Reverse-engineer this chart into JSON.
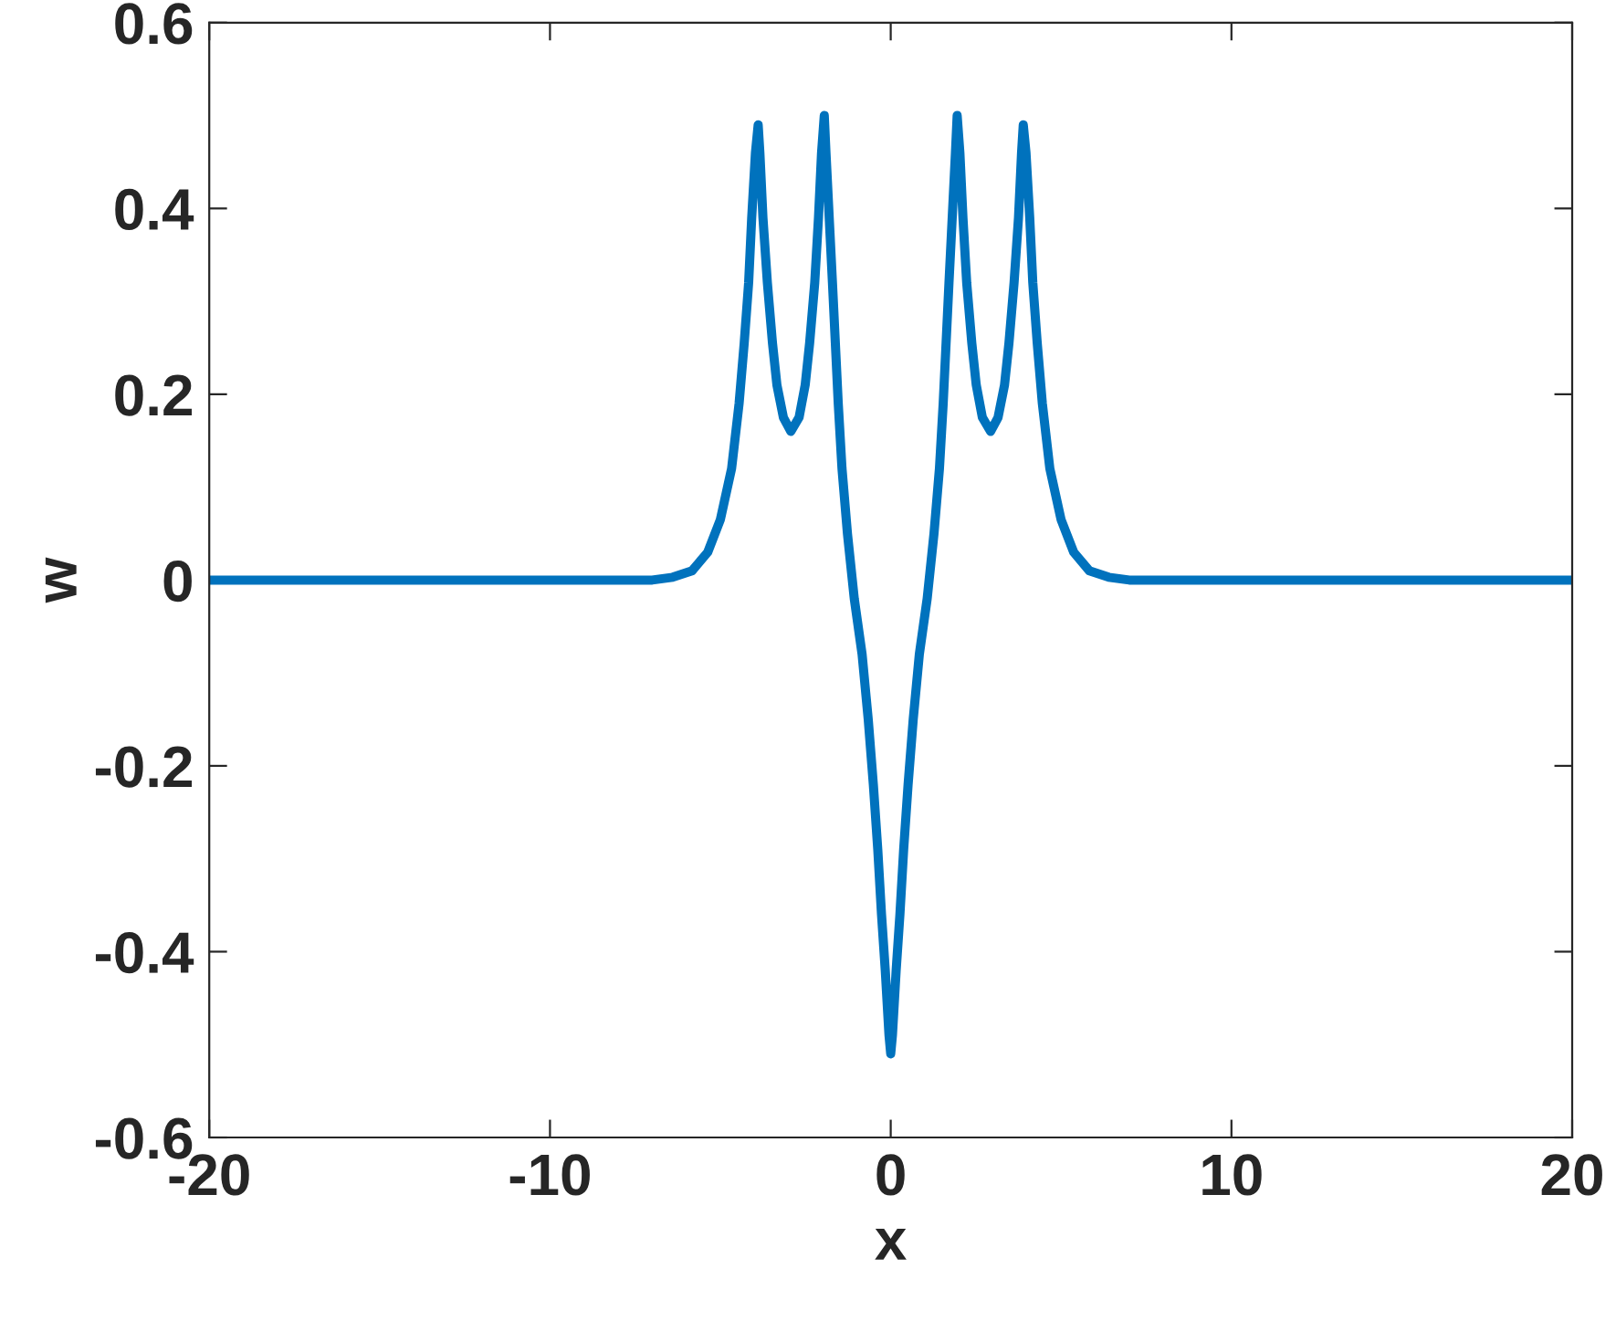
{
  "chart_data": {
    "type": "line",
    "xlabel": "x",
    "ylabel": "w",
    "series": [
      {
        "color": "#0072bd",
        "x": [
          -20,
          -10,
          -7,
          -6.4,
          -5.83,
          -5.37,
          -5.0,
          -4.67,
          -4.45,
          -4.3,
          -4.17,
          -4.08,
          -3.97,
          -3.89,
          -3.84,
          -3.75,
          -3.62,
          -3.47,
          -3.34,
          -3.15,
          -2.93,
          -2.69,
          -2.51,
          -2.38,
          -2.23,
          -2.12,
          -2.03,
          -1.95,
          -1.9,
          -1.71,
          -1.54,
          -1.43,
          -1.27,
          -1.07,
          -0.84,
          -0.66,
          -0.51,
          -0.38,
          -0.27,
          -0.16,
          -0.05,
          0,
          0.05,
          0.16,
          0.27,
          0.38,
          0.51,
          0.66,
          0.84,
          1.07,
          1.27,
          1.43,
          1.54,
          1.71,
          1.9,
          1.95,
          2.03,
          2.12,
          2.23,
          2.38,
          2.51,
          2.69,
          2.93,
          3.15,
          3.34,
          3.47,
          3.62,
          3.75,
          3.84,
          3.89,
          3.97,
          4.08,
          4.17,
          4.3,
          4.45,
          4.67,
          5.0,
          5.37,
          5.83,
          6.4,
          7,
          10,
          20
        ],
        "values": [
          0,
          0,
          0,
          0.003,
          0.01,
          0.03,
          0.065,
          0.12,
          0.19,
          0.255,
          0.32,
          0.39,
          0.46,
          0.49,
          0.46,
          0.39,
          0.32,
          0.255,
          0.21,
          0.175,
          0.16,
          0.175,
          0.21,
          0.255,
          0.32,
          0.39,
          0.46,
          0.5,
          0.46,
          0.32,
          0.19,
          0.12,
          0.05,
          -0.02,
          -0.08,
          -0.15,
          -0.22,
          -0.29,
          -0.36,
          -0.42,
          -0.49,
          -0.51,
          -0.49,
          -0.42,
          -0.36,
          -0.29,
          -0.22,
          -0.15,
          -0.08,
          -0.02,
          0.05,
          0.12,
          0.19,
          0.32,
          0.46,
          0.5,
          0.46,
          0.39,
          0.32,
          0.255,
          0.21,
          0.175,
          0.16,
          0.175,
          0.21,
          0.255,
          0.32,
          0.39,
          0.46,
          0.49,
          0.46,
          0.39,
          0.32,
          0.255,
          0.19,
          0.12,
          0.065,
          0.03,
          0.01,
          0.003,
          0,
          0,
          0
        ]
      }
    ],
    "xlim": [
      -20,
      20
    ],
    "ylim": [
      -0.6,
      0.6
    ],
    "xticks": [
      -20,
      -10,
      0,
      10,
      20
    ],
    "yticks": [
      -0.6,
      -0.4,
      -0.2,
      0,
      0.2,
      0.4,
      0.6
    ],
    "line_style": "solid",
    "marker": "none",
    "grid": false,
    "legend": false
  }
}
